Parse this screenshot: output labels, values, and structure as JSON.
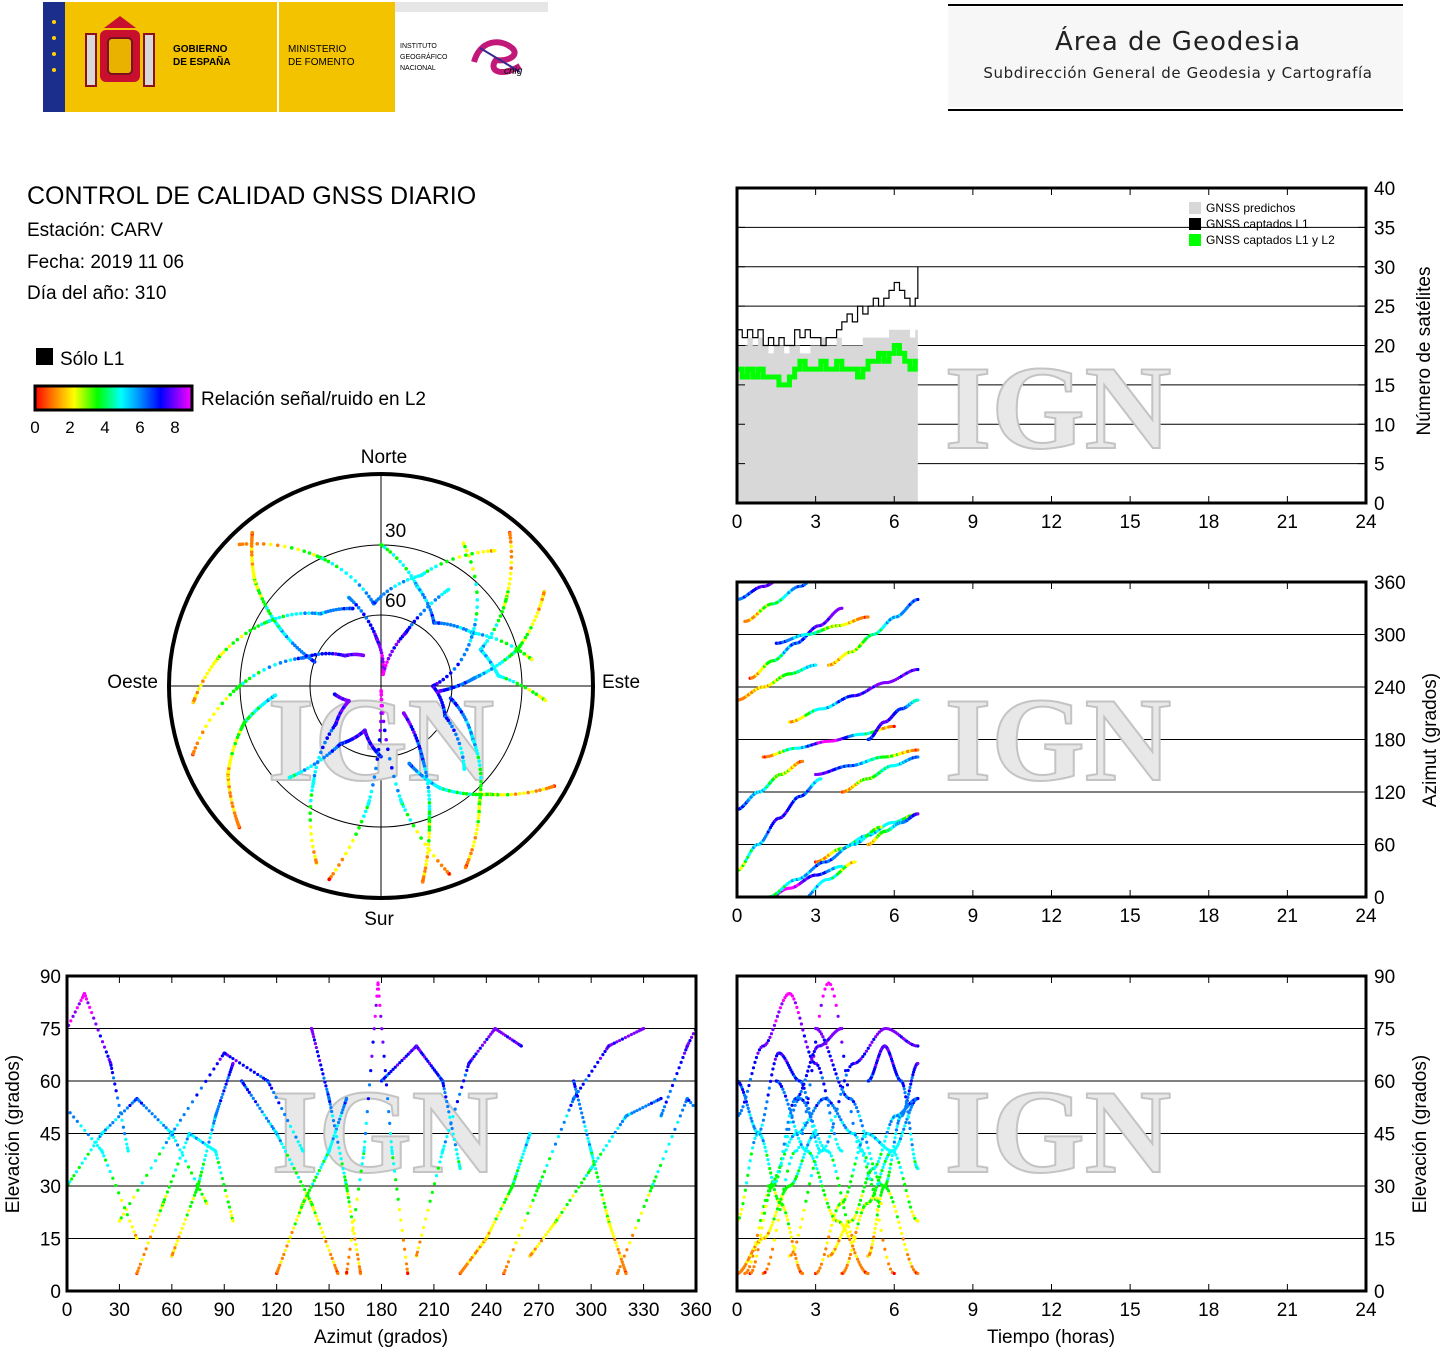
{
  "header": {
    "gobierno": [
      "GOBIERNO",
      "DE ESPAÑA"
    ],
    "ministerio": [
      "MINISTERIO",
      "DE FOMENTO"
    ],
    "instituto": [
      "INSTITUTO",
      "GEOGRÁFICO",
      "NACIONAL"
    ],
    "cnig": "cnig",
    "area_title": "Área de Geodesia",
    "area_subtitle": "Subdirección General de Geodesia y Cartografía"
  },
  "info": {
    "title": "CONTROL DE CALIDAD GNSS DIARIO",
    "station": "Estación: CARV",
    "date": "Fecha: 2019 11 06",
    "doy": "Día del año: 310",
    "solo_l1": "Sólo L1",
    "snr_label": "Relación señal/ruido en L2",
    "snr_ticks": [
      "0",
      "2",
      "4",
      "6",
      "8"
    ]
  },
  "watermark": "IGN",
  "colors": {
    "predicted": "#d8d8d8",
    "l1": "#000000",
    "l1l2": "#00ff00",
    "snr_scale": [
      "#ff0000",
      "#ff8000",
      "#ffff00",
      "#00ff00",
      "#00ffff",
      "#0080ff",
      "#0000ff",
      "#8000ff",
      "#ff00ff"
    ]
  },
  "chart_data": [
    {
      "id": "sat-count",
      "type": "line",
      "ylabel": "Número de satélites",
      "xlim": [
        0,
        24
      ],
      "ylim": [
        0,
        40
      ],
      "xticks": [
        "0",
        "3",
        "6",
        "9",
        "12",
        "15",
        "18",
        "21",
        "24"
      ],
      "yticks": [
        "0",
        "5",
        "10",
        "15",
        "20",
        "25",
        "30",
        "35",
        "40"
      ],
      "grid": true,
      "legend": [
        "GNSS predichos",
        "GNSS captados L1",
        "GNSS captados L1 y L2"
      ],
      "legend_position": "top-right",
      "x": [
        0,
        0.2,
        0.4,
        0.6,
        0.8,
        1.0,
        1.2,
        1.4,
        1.6,
        1.8,
        2.0,
        2.2,
        2.4,
        2.6,
        2.8,
        3.0,
        3.2,
        3.4,
        3.6,
        3.8,
        4.0,
        4.2,
        4.4,
        4.6,
        4.8,
        5.0,
        5.2,
        5.4,
        5.6,
        5.8,
        6.0,
        6.2,
        6.4,
        6.6,
        6.8,
        6.9
      ],
      "series": [
        {
          "name": "GNSS predichos",
          "values": [
            20,
            20,
            21,
            20,
            21,
            20,
            19,
            20,
            20,
            19,
            20,
            20,
            19,
            19,
            20,
            20,
            21,
            20,
            20,
            21,
            20,
            20,
            20,
            20,
            21,
            21,
            21,
            21,
            21,
            22,
            22,
            22,
            22,
            21,
            22,
            22
          ]
        },
        {
          "name": "GNSS captados L1",
          "values": [
            22,
            21,
            22,
            21,
            22,
            20,
            21,
            20,
            21,
            20,
            20,
            22,
            21,
            22,
            21,
            21,
            20,
            21,
            21,
            22,
            23,
            24,
            23,
            25,
            24,
            25,
            26,
            25,
            26,
            27,
            28,
            27,
            26,
            25,
            26,
            30
          ]
        },
        {
          "name": "GNSS captados L1 y L2",
          "values": [
            17,
            16,
            17,
            16,
            17,
            16,
            16,
            16,
            15,
            15,
            16,
            17,
            18,
            17,
            17,
            17,
            18,
            17,
            17,
            18,
            17,
            17,
            17,
            16,
            17,
            18,
            18,
            19,
            18,
            19,
            20,
            19,
            18,
            17,
            18,
            18
          ]
        }
      ]
    },
    {
      "id": "azimuth-time",
      "type": "scatter",
      "ylabel": "Azimut (grados)",
      "xlim": [
        0,
        24
      ],
      "ylim": [
        0,
        360
      ],
      "xticks": [
        "0",
        "3",
        "6",
        "9",
        "12",
        "15",
        "18",
        "21",
        "24"
      ],
      "yticks": [
        "0",
        "60",
        "120",
        "180",
        "240",
        "300",
        "360"
      ],
      "grid": true
    },
    {
      "id": "elevation-azimuth",
      "type": "scatter",
      "xlabel": "Azimut (grados)",
      "ylabel": "Elevación (grados)",
      "xlim": [
        0,
        360
      ],
      "ylim": [
        0,
        90
      ],
      "xticks": [
        "0",
        "30",
        "60",
        "90",
        "120",
        "150",
        "180",
        "210",
        "240",
        "270",
        "300",
        "330",
        "360"
      ],
      "yticks": [
        "0",
        "15",
        "30",
        "45",
        "60",
        "75",
        "90"
      ],
      "grid": true
    },
    {
      "id": "elevation-time",
      "type": "scatter",
      "xlabel": "Tiempo (horas)",
      "ylabel": "Elevación (grados)",
      "xlim": [
        0,
        24
      ],
      "ylim": [
        0,
        90
      ],
      "xticks": [
        "0",
        "3",
        "6",
        "9",
        "12",
        "15",
        "18",
        "21",
        "24"
      ],
      "yticks": [
        "0",
        "15",
        "30",
        "45",
        "60",
        "75",
        "90"
      ],
      "grid": true
    },
    {
      "id": "skyplot",
      "type": "scatter",
      "directions": {
        "north": "Norte",
        "south": "Sur",
        "east": "Este",
        "west": "Oeste"
      },
      "rings": [
        "30",
        "60"
      ]
    }
  ],
  "satellite_tracks": [
    {
      "az": [
        30,
        60,
        90,
        115,
        135
      ],
      "el": [
        20,
        45,
        68,
        60,
        40
      ],
      "t0": 0.0,
      "t1": 3.2
    },
    {
      "az": [
        315,
        335,
        355,
        20,
        40
      ],
      "el": [
        5,
        30,
        55,
        40,
        15
      ],
      "t0": 0.3,
      "t1": 4.5
    },
    {
      "az": [
        160,
        170,
        178,
        186,
        195
      ],
      "el": [
        5,
        40,
        88,
        40,
        5
      ],
      "t0": 1.0,
      "t1": 6.0
    },
    {
      "az": [
        250,
        270,
        290,
        310,
        330
      ],
      "el": [
        5,
        30,
        55,
        70,
        75
      ],
      "t0": 0.5,
      "t1": 4.0
    },
    {
      "az": [
        100,
        120,
        140,
        155
      ],
      "el": [
        60,
        45,
        25,
        5
      ],
      "t0": 0.0,
      "t1": 2.5
    },
    {
      "az": [
        200,
        215,
        230,
        245,
        260
      ],
      "el": [
        10,
        40,
        65,
        75,
        70
      ],
      "t0": 2.0,
      "t1": 6.9
    },
    {
      "az": [
        40,
        55,
        70,
        85,
        95
      ],
      "el": [
        5,
        25,
        45,
        40,
        20
      ],
      "t0": 3.0,
      "t1": 6.9
    },
    {
      "az": [
        290,
        300,
        310,
        320
      ],
      "el": [
        60,
        40,
        20,
        5
      ],
      "t0": 1.5,
      "t1": 5.0
    },
    {
      "az": [
        120,
        135,
        150,
        160
      ],
      "el": [
        5,
        25,
        40,
        55
      ],
      "t0": 4.0,
      "t1": 6.9
    },
    {
      "az": [
        340,
        355,
        10,
        25,
        35
      ],
      "el": [
        50,
        70,
        85,
        65,
        40
      ],
      "t0": 0.0,
      "t1": 4.0
    },
    {
      "az": [
        60,
        75,
        85,
        95
      ],
      "el": [
        10,
        30,
        50,
        65
      ],
      "t0": 5.0,
      "t1": 6.9
    },
    {
      "az": [
        225,
        240,
        255,
        265
      ],
      "el": [
        5,
        15,
        30,
        45
      ],
      "t0": 0.0,
      "t1": 3.0
    },
    {
      "az": [
        140,
        150,
        160,
        168
      ],
      "el": [
        75,
        55,
        30,
        5
      ],
      "t0": 3.0,
      "t1": 6.9
    },
    {
      "az": [
        265,
        280,
        300,
        320,
        340
      ],
      "el": [
        10,
        20,
        35,
        50,
        55
      ],
      "t0": 3.5,
      "t1": 6.9
    },
    {
      "az": [
        0,
        20,
        40,
        60,
        80
      ],
      "el": [
        30,
        45,
        55,
        45,
        25
      ],
      "t0": 1.2,
      "t1": 5.5
    },
    {
      "az": [
        180,
        200,
        215,
        225
      ],
      "el": [
        60,
        70,
        60,
        35
      ],
      "t0": 5.0,
      "t1": 6.9
    }
  ]
}
